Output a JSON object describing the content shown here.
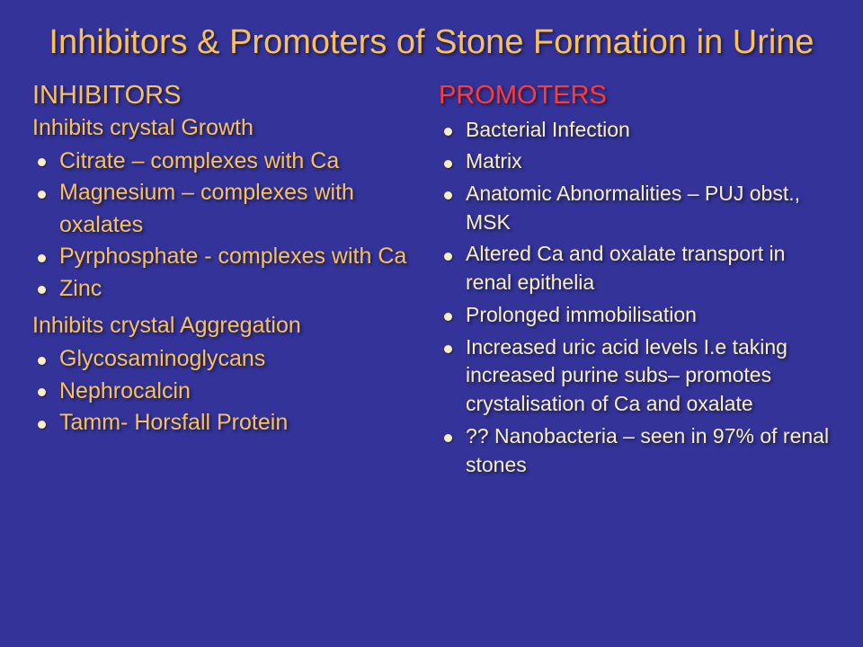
{
  "title": "Inhibitors & Promoters of Stone Formation in Urine",
  "left": {
    "heading": "INHIBITORS",
    "sub1": "Inhibits crystal Growth",
    "items1": [
      "Citrate – complexes with Ca",
      "Magnesium – complexes with oxalates",
      "Pyrphosphate - complexes with Ca",
      "Zinc"
    ],
    "sub2": "Inhibits crystal Aggregation",
    "items2": [
      "Glycosaminoglycans",
      "Nephrocalcin",
      "Tamm- Horsfall Protein"
    ]
  },
  "right": {
    "heading": "PROMOTERS",
    "items": [
      "Bacterial Infection",
      "Matrix",
      "Anatomic Abnormalities – PUJ obst., MSK",
      "Altered Ca and oxalate transport in renal epithelia",
      "Prolonged immobilisation",
      "Increased uric acid levels I.e taking increased purine subs– promotes crystalisation of Ca and oxalate",
      "?? Nanobacteria – seen in 97% of renal stones"
    ]
  },
  "colors": {
    "background": "#333399",
    "title": "#fac15a",
    "leftText": "#fac15a",
    "rightHeading": "#ff3b33",
    "rightText": "#f9efc2",
    "bullet": "#f9efc2"
  }
}
